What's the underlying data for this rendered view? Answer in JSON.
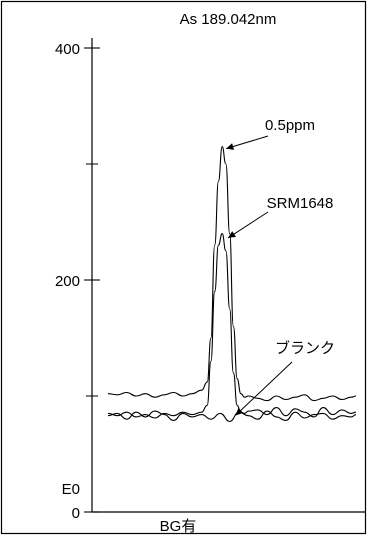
{
  "chart_data": {
    "type": "line",
    "title": "As 189.042nm",
    "xlabel": "BG有",
    "ylabel": "",
    "ylim": [
      0,
      400
    ],
    "yticks": [
      {
        "value": 0,
        "label": "0"
      },
      {
        "value": 200,
        "label": "200"
      },
      {
        "value": 400,
        "label": "400"
      }
    ],
    "minor_yticks": [
      100,
      300
    ],
    "baseline_label": "E0",
    "series": [
      {
        "name": "0.5ppm",
        "stroke": "#000000",
        "x": [
          0,
          10,
          20,
          30,
          40,
          50,
          60,
          70,
          80,
          90,
          100,
          106,
          110,
          114,
          118,
          122,
          126,
          130,
          134,
          138,
          142,
          146,
          150,
          160,
          170,
          180,
          190,
          200,
          210,
          220,
          230,
          240,
          250,
          260,
          265
        ],
        "values": [
          102,
          101,
          103,
          100,
          102,
          99,
          101,
          103,
          100,
          102,
          105,
          112,
          150,
          230,
          285,
          315,
          300,
          240,
          160,
          115,
          102,
          99,
          100,
          98,
          96,
          100,
          97,
          99,
          101,
          96,
          98,
          100,
          97,
          99,
          100
        ]
      },
      {
        "name": "SRM1648",
        "stroke": "#000000",
        "x": [
          0,
          10,
          20,
          30,
          40,
          50,
          60,
          70,
          80,
          90,
          100,
          106,
          110,
          114,
          118,
          122,
          126,
          130,
          134,
          138,
          142,
          146,
          150,
          160,
          170,
          180,
          190,
          200,
          210,
          220,
          230,
          240,
          250,
          260,
          265
        ],
        "values": [
          85,
          83,
          86,
          82,
          84,
          81,
          85,
          83,
          86,
          84,
          86,
          92,
          130,
          190,
          230,
          240,
          225,
          175,
          120,
          92,
          86,
          85,
          87,
          88,
          84,
          90,
          83,
          89,
          86,
          82,
          90,
          84,
          88,
          85,
          86
        ]
      },
      {
        "name": "ブランク",
        "stroke": "#000000",
        "x": [
          0,
          10,
          20,
          30,
          40,
          50,
          60,
          70,
          80,
          90,
          100,
          110,
          120,
          130,
          140,
          150,
          160,
          170,
          180,
          190,
          200,
          210,
          220,
          230,
          240,
          250,
          260,
          265
        ],
        "values": [
          83,
          85,
          80,
          86,
          82,
          87,
          84,
          79,
          85,
          82,
          84,
          80,
          85,
          78,
          86,
          83,
          80,
          87,
          82,
          79,
          86,
          81,
          84,
          85,
          80,
          83,
          82,
          84
        ]
      }
    ],
    "annotations": [
      {
        "text": "0.5ppm",
        "points_to": {
          "x": 122,
          "y": 315
        }
      },
      {
        "text": "SRM1648",
        "points_to": {
          "x": 124,
          "y": 238
        }
      },
      {
        "text": "ブランク",
        "points_to": {
          "x": 132,
          "y": 85
        }
      }
    ]
  }
}
